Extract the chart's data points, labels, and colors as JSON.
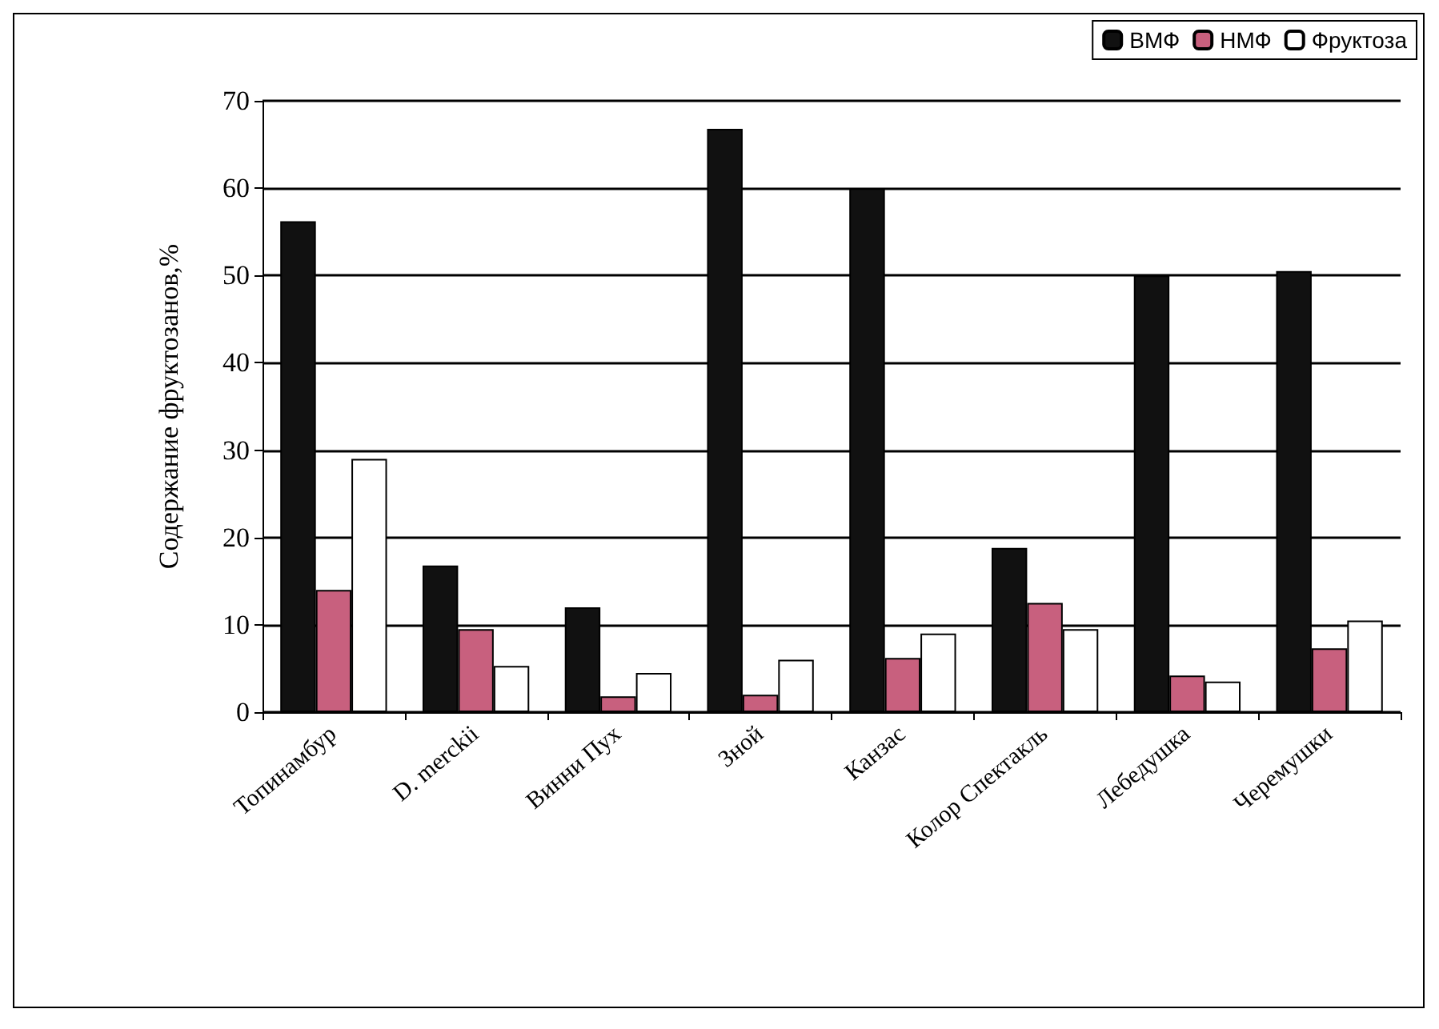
{
  "chart_data": {
    "type": "bar",
    "ylabel": "Содержание фруктозанов,%",
    "categories": [
      "Топинамбур",
      "D. merckii",
      "Винни Пух",
      "Зной",
      "Канзас",
      "Колор Спектакль",
      "Лебедушка",
      "Черемушки"
    ],
    "series": [
      {
        "name": "ВМФ",
        "color": "#111111",
        "values": [
          56.2,
          16.8,
          12,
          66.8,
          60,
          18.8,
          50,
          50.5
        ]
      },
      {
        "name": "НМФ",
        "color": "#c8607e",
        "values": [
          14,
          9.5,
          1.8,
          2,
          6.2,
          12.5,
          4.2,
          7.3
        ]
      },
      {
        "name": "Фруктоза",
        "color": "#ffffff",
        "values": [
          29,
          5.3,
          4.5,
          6,
          9,
          9.5,
          3.5,
          10.5
        ]
      }
    ],
    "ylim": [
      0,
      70
    ],
    "yticks": [
      0,
      10,
      20,
      30,
      40,
      50,
      60,
      70
    ],
    "grid": "y",
    "legend": "top right"
  }
}
